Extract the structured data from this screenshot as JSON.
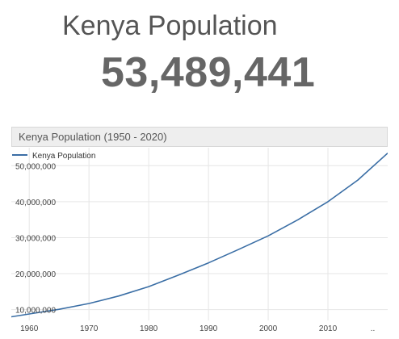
{
  "header": {
    "title": "Kenya Population",
    "value": "53,489,441"
  },
  "chart_data": {
    "type": "line",
    "title": "Kenya Population (1950 - 2020)",
    "legend_position": "top-left",
    "grid": true,
    "line_color": "#3a6ea5",
    "x_tick_labels": [
      "1960",
      "1970",
      "1980",
      "1990",
      "2000",
      "2010",
      ".."
    ],
    "y_tick_labels": [
      "10,000,000",
      "20,000,000",
      "30,000,000",
      "40,000,000",
      "50,000,000"
    ],
    "xlim": [
      1957,
      2020
    ],
    "ylim": [
      7000000,
      55000000
    ],
    "series": [
      {
        "name": "Kenya Population",
        "x": [
          1957,
          1960,
          1965,
          1970,
          1975,
          1980,
          1985,
          1990,
          1995,
          2000,
          2005,
          2010,
          2015,
          2020
        ],
        "y": [
          8000000,
          8800000,
          10100000,
          11700000,
          13800000,
          16400000,
          19600000,
          23000000,
          26700000,
          30500000,
          35000000,
          40000000,
          46000000,
          53500000
        ]
      }
    ]
  }
}
